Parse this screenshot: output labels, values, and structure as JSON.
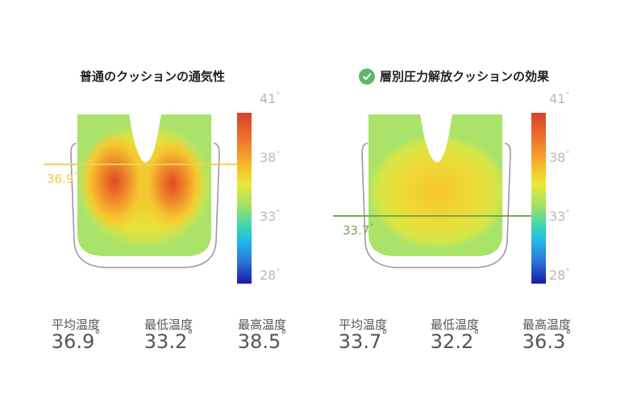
{
  "left": {
    "title": "普通のクッションの通気性",
    "marker_value": "36.9",
    "marker_color": "#f2d24a",
    "ticks": [
      "41",
      "38",
      "33",
      "28"
    ],
    "stats": [
      {
        "label": "平均温度",
        "value": "36.9"
      },
      {
        "label": "最低温度",
        "value": "33.2"
      },
      {
        "label": "最高温度",
        "value": "38.5"
      }
    ]
  },
  "right": {
    "title": "層別圧力解放クッションの効果",
    "check_icon": "check-circle-icon",
    "check_color": "#5fb86e",
    "marker_value": "33.7",
    "marker_color": "#7aa84a",
    "ticks": [
      "41",
      "38",
      "33",
      "28"
    ],
    "stats": [
      {
        "label": "平均温度",
        "value": "33.7"
      },
      {
        "label": "最低温度",
        "value": "32.2"
      },
      {
        "label": "最高温度",
        "value": "36.3"
      }
    ]
  },
  "degree_symbol": "°"
}
